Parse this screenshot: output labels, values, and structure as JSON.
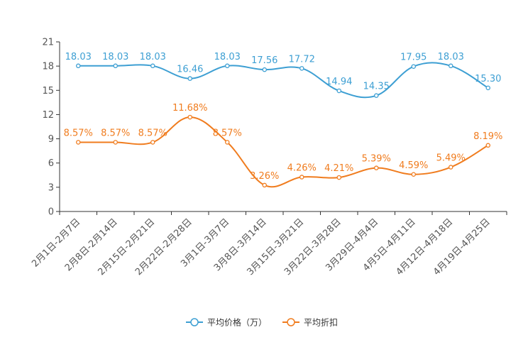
{
  "chart_data": {
    "type": "line",
    "categories": [
      "2月1日-2月7日",
      "2月8日-2月14日",
      "2月15日-2月21日",
      "2月22日-2月28日",
      "3月1日-3月7日",
      "3月8日-3月14日",
      "3月15日-3月21日",
      "3月22日-3月28日",
      "3月29日-4月4日",
      "4月5日-4月11日",
      "4月12日-4月18日",
      "4月19日-4月25日"
    ],
    "ylim": [
      0,
      21
    ],
    "yticks": [
      0,
      3,
      6,
      9,
      12,
      15,
      18,
      21
    ],
    "grid": false,
    "legend_position": "bottom",
    "series": [
      {
        "name": "平均价格（万）",
        "color": "#3d9fd3",
        "values": [
          18.03,
          18.03,
          18.03,
          16.46,
          18.03,
          17.56,
          17.72,
          14.94,
          14.35,
          17.95,
          18.03,
          15.3
        ],
        "labels": [
          "18.03",
          "18.03",
          "18.03",
          "16.46",
          "18.03",
          "17.56",
          "17.72",
          "14.94",
          "14.35",
          "17.95",
          "18.03",
          "15.30"
        ]
      },
      {
        "name": "平均折扣",
        "color": "#f07c1e",
        "values": [
          8.57,
          8.57,
          8.57,
          11.68,
          8.57,
          3.26,
          4.26,
          4.21,
          5.39,
          4.59,
          5.49,
          8.19
        ],
        "labels": [
          "8.57%",
          "8.57%",
          "8.57%",
          "11.68%",
          "8.57%",
          "3.26%",
          "4.26%",
          "4.21%",
          "5.39%",
          "4.59%",
          "5.49%",
          "8.19%"
        ]
      }
    ]
  }
}
